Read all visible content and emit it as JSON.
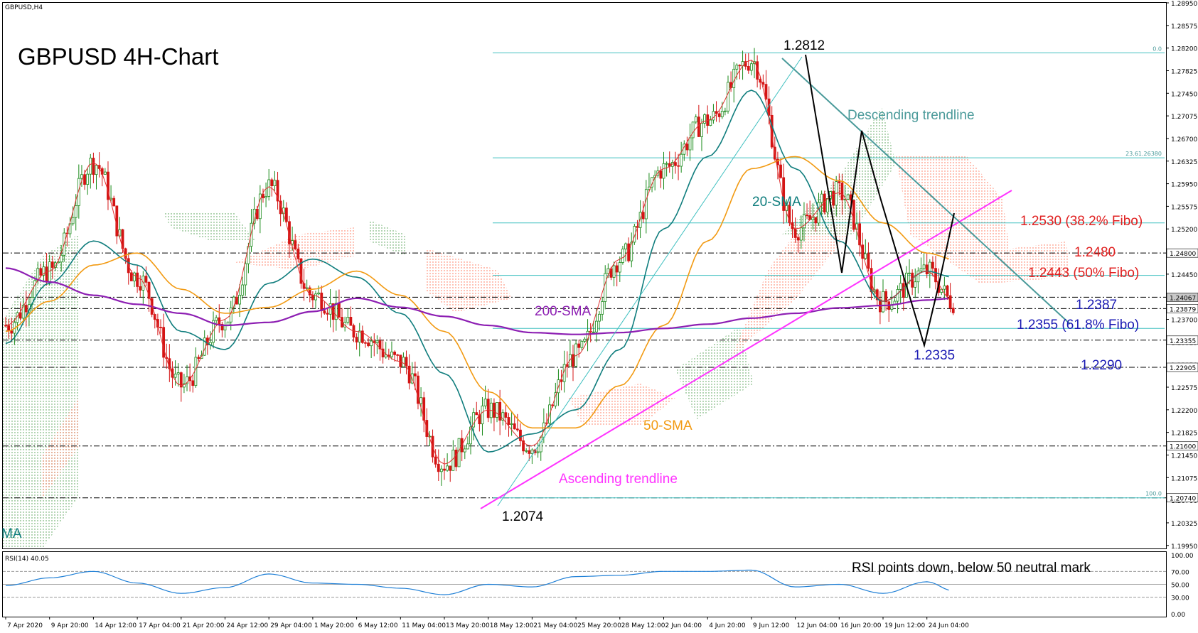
{
  "chart_data": {
    "type": "line",
    "symbol_label": "GBPUSD,H4",
    "title": "GBPUSD 4H-Chart",
    "price_axis": {
      "min": 1.199,
      "max": 1.2895,
      "ticks": [
        "1.28950",
        "1.28575",
        "1.28200",
        "1.27825",
        "1.27450",
        "1.27075",
        "1.26700",
        "1.26325",
        "1.25950",
        "1.25575",
        "1.25200",
        "1.24825",
        "1.24450",
        "1.24075",
        "1.23700",
        "1.23325",
        "1.22950",
        "1.22575",
        "1.22200",
        "1.21825",
        "1.21450",
        "1.21075",
        "1.20700",
        "1.20325",
        "1.19950"
      ],
      "tick_values": [
        1.2895,
        1.28575,
        1.282,
        1.27825,
        1.2745,
        1.27075,
        1.267,
        1.26325,
        1.2595,
        1.25575,
        1.252,
        1.24825,
        1.2445,
        1.24075,
        1.237,
        1.23325,
        1.2295,
        1.22575,
        1.222,
        1.21825,
        1.2145,
        1.21075,
        1.207,
        1.20325,
        1.1995
      ]
    },
    "time_axis": {
      "labels": [
        "7 Apr 2020",
        "9 Apr 20:00",
        "14 Apr 12:00",
        "17 Apr 04:00",
        "21 Apr 20:00",
        "24 Apr 12:00",
        "29 Apr 04:00",
        "1 May 20:00",
        "6 May 12:00",
        "11 May 04:00",
        "13 May 20:00",
        "18 May 12:00",
        "21 May 04:00",
        "25 May 20:00",
        "28 May 12:00",
        "2 Jun 04:00",
        "4 Jun 20:00",
        "9 Jun 12:00",
        "12 Jun 04:00",
        "16 Jun 20:00",
        "19 Jun 12:00",
        "24 Jun 04:00"
      ],
      "positions": [
        0,
        1,
        2,
        3,
        4,
        5,
        6,
        7,
        8,
        9,
        10,
        11,
        12,
        13,
        14,
        15,
        16,
        17,
        18,
        19,
        20,
        21
      ]
    },
    "series": [
      {
        "name": "20-SMA",
        "color": "#0f7d7d",
        "x": [
          0,
          1,
          2,
          3,
          4,
          5,
          6,
          7,
          8,
          9,
          10,
          11,
          12,
          13,
          14,
          15,
          16,
          17,
          18,
          19,
          20,
          21,
          21.6
        ],
        "values": [
          1.233,
          1.243,
          1.25,
          1.246,
          1.235,
          1.232,
          1.243,
          1.247,
          1.244,
          1.238,
          1.228,
          1.215,
          1.218,
          1.222,
          1.232,
          1.252,
          1.264,
          1.275,
          1.262,
          1.25,
          1.24,
          1.245,
          1.244
        ]
      },
      {
        "name": "50-SMA",
        "color": "#f29a12",
        "x": [
          0,
          1,
          2,
          3,
          4,
          5,
          6,
          7,
          8,
          9,
          10,
          11,
          12,
          13,
          14,
          15,
          16,
          17,
          18,
          19,
          20,
          21,
          21.6
        ],
        "values": [
          1.235,
          1.24,
          1.246,
          1.248,
          1.242,
          1.238,
          1.239,
          1.242,
          1.245,
          1.241,
          1.235,
          1.225,
          1.219,
          1.219,
          1.226,
          1.236,
          1.25,
          1.262,
          1.264,
          1.26,
          1.253,
          1.248,
          1.247
        ]
      },
      {
        "name": "200-SMA",
        "color": "#8d1fb3",
        "x": [
          0,
          1,
          2,
          3,
          4,
          5,
          6,
          7,
          8,
          9,
          10,
          11,
          12,
          13,
          14,
          15,
          16,
          17,
          18,
          19,
          20,
          21,
          21.6
        ],
        "values": [
          1.2455,
          1.2432,
          1.241,
          1.2395,
          1.238,
          1.236,
          1.2365,
          1.2383,
          1.2405,
          1.239,
          1.2375,
          1.236,
          1.2348,
          1.2345,
          1.2348,
          1.2355,
          1.2362,
          1.2372,
          1.238,
          1.2389,
          1.2393,
          1.2402,
          1.2405
        ]
      },
      {
        "name": "Close",
        "color": "#d41414",
        "x": [
          0,
          1,
          2,
          3,
          4,
          5,
          6,
          7,
          8,
          9,
          10,
          11,
          12,
          13,
          14,
          15,
          16,
          17,
          18,
          19,
          20,
          21,
          21.6
        ],
        "values": [
          1.236,
          1.245,
          1.263,
          1.244,
          1.226,
          1.237,
          1.259,
          1.241,
          1.235,
          1.23,
          1.213,
          1.222,
          1.216,
          1.231,
          1.247,
          1.262,
          1.27,
          1.28,
          1.252,
          1.258,
          1.24,
          1.245,
          1.24
        ]
      }
    ],
    "rsi": {
      "label": "RSI(14) 40.05",
      "value": 40.05,
      "ticks": [
        "100.00",
        "70.00",
        "50.00",
        "30.00",
        "0.00"
      ],
      "tick_values": [
        100,
        70,
        50,
        30,
        0
      ],
      "x": [
        0,
        1,
        2,
        3,
        4,
        5,
        6,
        7,
        8,
        9,
        10,
        11,
        12,
        13,
        14,
        15,
        16,
        17,
        18,
        19,
        20,
        21,
        21.6
      ],
      "values": [
        48,
        60,
        70,
        52,
        36,
        45,
        66,
        52,
        50,
        44,
        34,
        50,
        46,
        62,
        64,
        70,
        70,
        72,
        46,
        50,
        36,
        54,
        40
      ]
    },
    "levels": [
      {
        "label": "1.24800",
        "value": 1.248
      },
      {
        "label": "1.24067",
        "value": 1.24067,
        "highlight": true
      },
      {
        "label": "1.23879",
        "value": 1.23879
      },
      {
        "label": "1.23355",
        "value": 1.23355
      },
      {
        "label": "1.22905",
        "value": 1.22905
      },
      {
        "label": "1.21600",
        "value": 1.216
      },
      {
        "label": "1.20740",
        "value": 1.2074
      }
    ],
    "fib_levels": [
      {
        "label": "0.0",
        "value": 1.2812
      },
      {
        "label": "23.61.26380",
        "value": 1.2638
      },
      {
        "label": "",
        "value": 1.253
      },
      {
        "label": "",
        "value": 1.2443
      },
      {
        "label": "",
        "value": 1.2355
      },
      {
        "label": "100.0",
        "value": 1.2074
      }
    ],
    "annotations": {
      "high": "1.2812",
      "low": "1.2074",
      "swing_low": "1.2335",
      "lvl_2530": "1.2530 (38.2% Fibo)",
      "lvl_2480": "1.2480",
      "lvl_2443": "1.2443 (50% Fibo)",
      "lvl_2387": "1.2387",
      "lvl_2355": "1.2355 (61.8% Fibo)",
      "lvl_2290": "1.2290",
      "desc_trend": "Descending trendline",
      "asc_trend": "Ascending trendline",
      "sma20": "20-SMA",
      "sma50": "50-SMA",
      "sma200": "200-SMA",
      "rsi_note": "RSI points down, below 50 neutral mark",
      "clipped_label": "MA"
    }
  }
}
